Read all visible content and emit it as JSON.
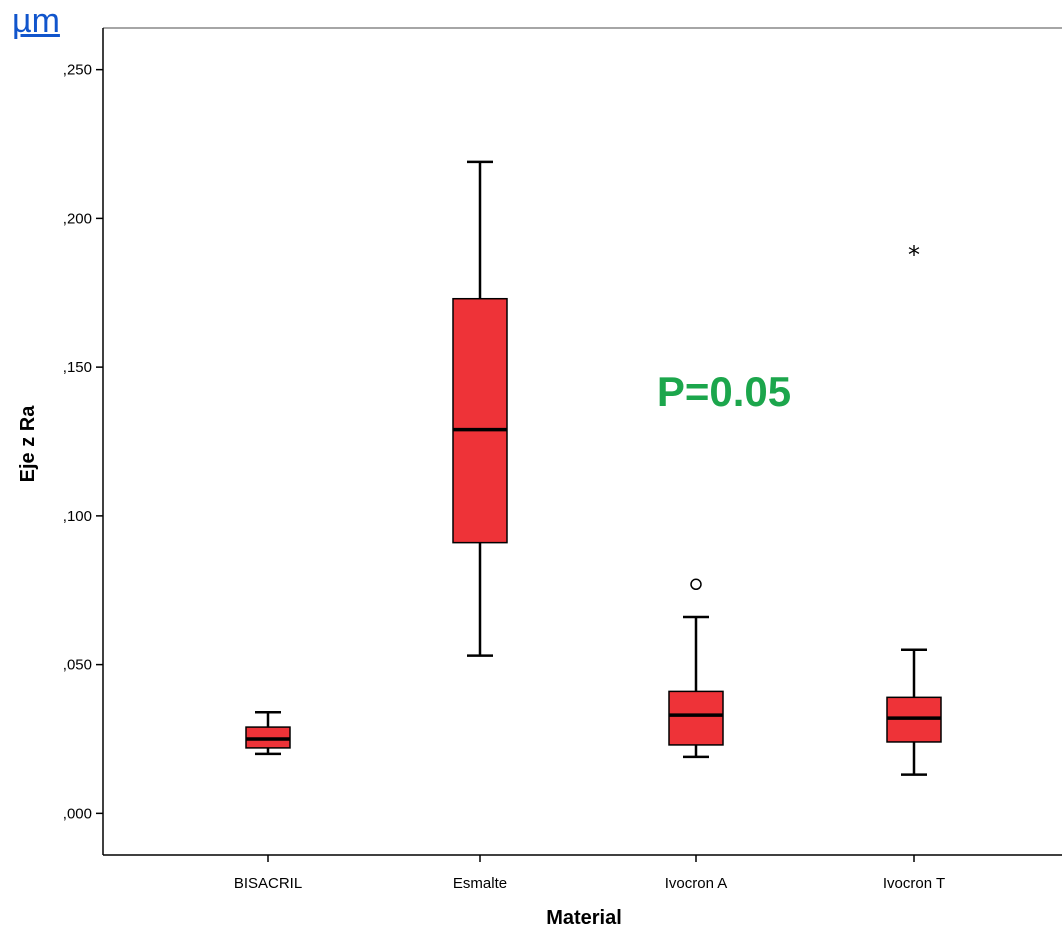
{
  "unit_label": "µm",
  "chart_data": {
    "type": "boxplot",
    "xlabel": "Material",
    "ylabel": "Eje z Ra",
    "ylim": [
      -0.014,
      0.264
    ],
    "yticks": [
      ",000",
      ",050",
      ",100",
      ",150",
      ",200",
      ",250"
    ],
    "ytick_values": [
      0,
      0.05,
      0.1,
      0.15,
      0.2,
      0.25
    ],
    "categories": [
      "BISACRIL",
      "Esmalte",
      "Ivocron A",
      "Ivocron T"
    ],
    "boxes": [
      {
        "category": "BISACRIL",
        "whisker_low": 0.02,
        "q1": 0.022,
        "median": 0.025,
        "q3": 0.029,
        "whisker_high": 0.034,
        "outliers": [],
        "extremes": []
      },
      {
        "category": "Esmalte",
        "whisker_low": 0.053,
        "q1": 0.091,
        "median": 0.129,
        "q3": 0.173,
        "whisker_high": 0.219,
        "outliers": [],
        "extremes": []
      },
      {
        "category": "Ivocron A",
        "whisker_low": 0.019,
        "q1": 0.023,
        "median": 0.033,
        "q3": 0.041,
        "whisker_high": 0.066,
        "outliers": [
          0.077
        ],
        "extremes": []
      },
      {
        "category": "Ivocron T",
        "whisker_low": 0.013,
        "q1": 0.024,
        "median": 0.032,
        "q3": 0.039,
        "whisker_high": 0.055,
        "outliers": [],
        "extremes": [
          0.189
        ]
      }
    ],
    "annotation": {
      "text": "P=0.05",
      "color": "#1ca64c"
    },
    "box_color": "#ee3338",
    "grid": false
  }
}
